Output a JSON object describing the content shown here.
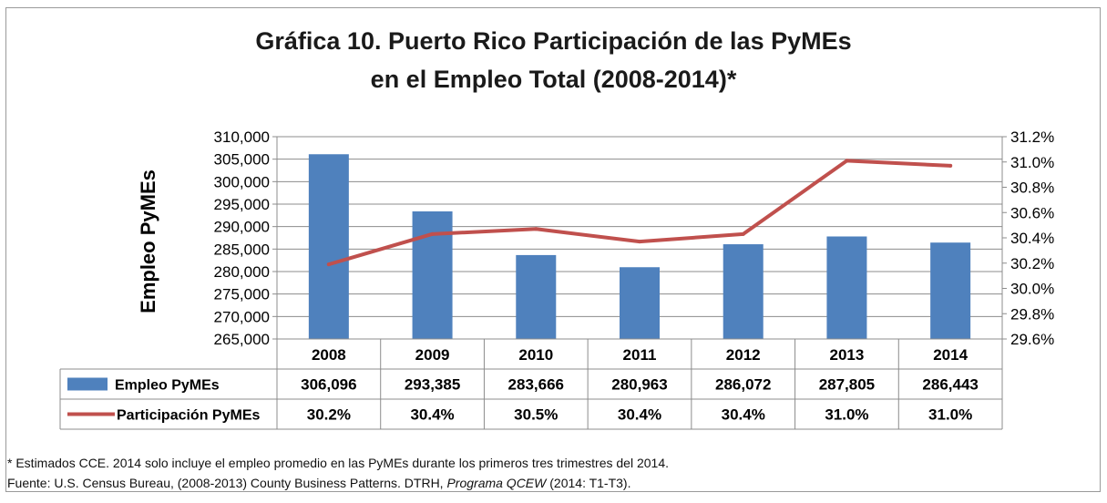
{
  "chart_data": {
    "type": "bar",
    "title_line1": "Gráfica 10.  Puerto Rico Participación de las PyMEs",
    "title_line2": "en el Empleo Total (2008-2014)*",
    "ylabel": "Empleo PyMEs",
    "categories": [
      "2008",
      "2009",
      "2010",
      "2011",
      "2012",
      "2013",
      "2014"
    ],
    "left_axis": {
      "ylim": [
        265000,
        310000
      ],
      "ticks": [
        "265,000",
        "270,000",
        "275,000",
        "280,000",
        "285,000",
        "290,000",
        "295,000",
        "300,000",
        "305,000",
        "310,000"
      ]
    },
    "right_axis": {
      "ylim": [
        29.6,
        31.2
      ],
      "ticks": [
        "29.6%",
        "29.8%",
        "30.0%",
        "30.2%",
        "30.4%",
        "30.6%",
        "30.8%",
        "31.0%",
        "31.2%"
      ]
    },
    "series": [
      {
        "name": "Empleo PyMEs",
        "kind": "bar",
        "axis": "left",
        "color": "#4f81bd",
        "values": [
          306096,
          293385,
          283666,
          280963,
          286072,
          287805,
          286443
        ],
        "table_values": [
          "306,096",
          "293,385",
          "283,666",
          "280,963",
          "286,072",
          "287,805",
          "286,443"
        ]
      },
      {
        "name": "Participación PyMEs",
        "kind": "line",
        "axis": "right",
        "color": "#c0504d",
        "values": [
          30.19,
          30.43,
          30.47,
          30.37,
          30.43,
          31.01,
          30.97
        ],
        "table_values": [
          "30.2%",
          "30.4%",
          "30.5%",
          "30.4%",
          "30.4%",
          "31.0%",
          "31.0%"
        ]
      }
    ],
    "grid": true,
    "data_table": true
  },
  "footnote": "* Estimados CCE.  2014 solo incluye el empleo  promedio en  las PyMEs durante los primeros tres trimestres del 2014.",
  "source_prefix": "Fuente:  U.S.  Census Bureau, (2008-2013) County Business Patterns. DTRH,  ",
  "source_italic": "Programa  QCEW",
  "source_suffix": " (2014: T1-T3)."
}
